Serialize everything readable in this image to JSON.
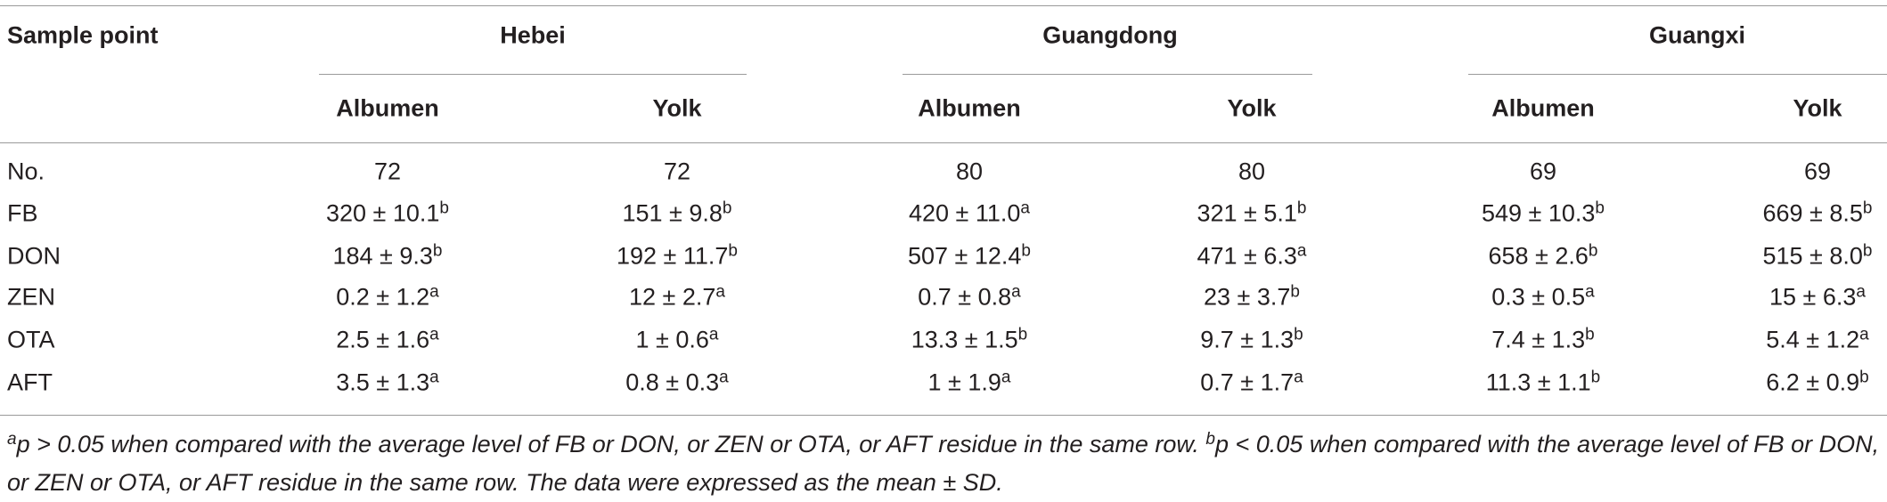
{
  "table": {
    "header": [
      "Sample point",
      "Hebei",
      "Guangdong",
      "Guangxi"
    ],
    "subheader": [
      "Albumen",
      "Yolk",
      "Albumen",
      "Yolk",
      "Albumen",
      "Yolk"
    ],
    "rows": [
      {
        "label": "No.",
        "cells": [
          {
            "value": "72"
          },
          {
            "value": "72"
          },
          {
            "value": "80"
          },
          {
            "value": "80"
          },
          {
            "value": "69"
          },
          {
            "value": "69"
          }
        ]
      },
      {
        "label": "FB",
        "cells": [
          {
            "value": "320 ± 10.1",
            "sup": "b"
          },
          {
            "value": "151 ± 9.8",
            "sup": "b"
          },
          {
            "value": "420 ± 11.0",
            "sup": "a"
          },
          {
            "value": "321 ± 5.1",
            "sup": "b"
          },
          {
            "value": "549 ± 10.3",
            "sup": "b"
          },
          {
            "value": "669 ± 8.5",
            "sup": "b"
          }
        ]
      },
      {
        "label": "DON",
        "cells": [
          {
            "value": "184 ± 9.3",
            "sup": "b"
          },
          {
            "value": "192 ± 11.7",
            "sup": "b"
          },
          {
            "value": "507 ± 12.4",
            "sup": "b"
          },
          {
            "value": "471 ± 6.3",
            "sup": "a"
          },
          {
            "value": "658 ± 2.6",
            "sup": "b"
          },
          {
            "value": "515 ± 8.0",
            "sup": "b"
          }
        ]
      },
      {
        "label": "ZEN",
        "cells": [
          {
            "value": "0.2 ± 1.2",
            "sup": "a"
          },
          {
            "value": "12 ± 2.7",
            "sup": "a"
          },
          {
            "value": "0.7 ± 0.8",
            "sup": "a"
          },
          {
            "value": "23 ± 3.7",
            "sup": "b"
          },
          {
            "value": "0.3 ± 0.5",
            "sup": "a"
          },
          {
            "value": "15 ± 6.3",
            "sup": "a"
          }
        ]
      },
      {
        "label": "OTA",
        "cells": [
          {
            "value": "2.5 ± 1.6",
            "sup": "a"
          },
          {
            "value": "1 ± 0.6",
            "sup": "a"
          },
          {
            "value": "13.3 ± 1.5",
            "sup": "b"
          },
          {
            "value": "9.7 ± 1.3",
            "sup": "b"
          },
          {
            "value": "7.4 ± 1.3",
            "sup": "b"
          },
          {
            "value": "5.4 ± 1.2",
            "sup": "a"
          }
        ]
      },
      {
        "label": "AFT",
        "cells": [
          {
            "value": "3.5 ± 1.3",
            "sup": "a"
          },
          {
            "value": "0.8 ± 0.3",
            "sup": "a"
          },
          {
            "value": "1 ± 1.9",
            "sup": "a"
          },
          {
            "value": "0.7 ± 1.7",
            "sup": "a"
          },
          {
            "value": "11.3 ± 1.1",
            "sup": "b"
          },
          {
            "value": "6.2 ± 0.9",
            "sup": "b"
          }
        ]
      }
    ],
    "notes": [
      {
        "sup": "a",
        "text": "p > 0.05 when compared with the average level of FB or DON, or ZEN or OTA, or AFT residue in the same row."
      },
      {
        "sup": "b",
        "text": "p < 0.05 when compared with the average level of FB or DON, or ZEN or OTA, or AFT residue in the same row. The data were expressed as the mean ± SD."
      }
    ]
  }
}
